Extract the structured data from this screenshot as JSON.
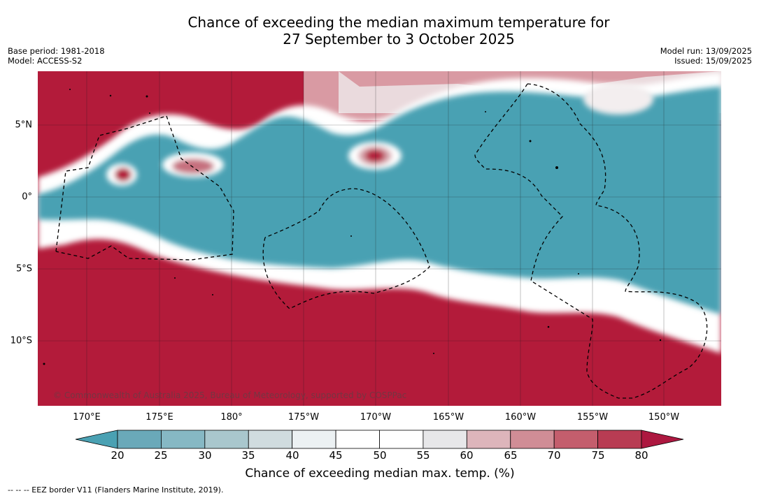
{
  "title": {
    "line1": "Chance of exceeding the median maximum temperature for",
    "line2": "27 September to 3 October 2025"
  },
  "meta": {
    "base_period": "Base period: 1981-2018",
    "model": "Model: ACCESS-S2",
    "model_run": "Model run: 13/09/2025",
    "issued": "Issued: 15/09/2025"
  },
  "map": {
    "lon_labels": [
      "170°E",
      "175°E",
      "180°",
      "175°W",
      "170°W",
      "165°W",
      "160°W",
      "155°W",
      "150°W"
    ],
    "lat_labels": [
      "5°N",
      "0°",
      "5°S",
      "10°S"
    ],
    "credit": "© Commonwealth of Australia 2025, Bureau of Meteorology, supported by COSPPac",
    "colors": {
      "warm": "#b31b3a",
      "cool": "#4aa1b3",
      "near_median": "#ffffff"
    }
  },
  "colorbar": {
    "ticks": [
      "20",
      "25",
      "30",
      "35",
      "40",
      "45",
      "50",
      "55",
      "60",
      "65",
      "70",
      "75",
      "80"
    ],
    "colors": [
      "#4aa1b3",
      "#6aa9b9",
      "#86b8c4",
      "#a9c7cd",
      "#d0dcdf",
      "#ecf1f3",
      "#ffffff",
      "#ffffff",
      "#e7e7e9",
      "#ddb5bb",
      "#d08d96",
      "#c45e6d",
      "#b83c53",
      "#ad1840"
    ],
    "title": "Chance of exceeding median max. temp. (%)"
  },
  "footnote": "--  --  -- EEZ border V11 (Flanders Marine Institute, 2019)."
}
